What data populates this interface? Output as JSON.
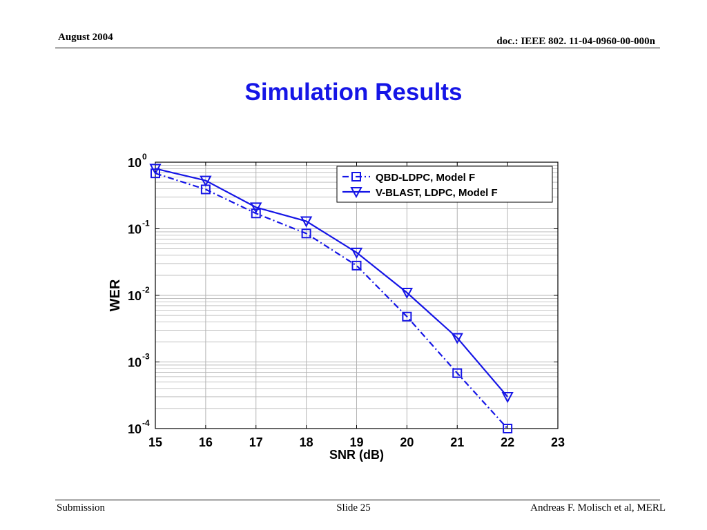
{
  "header": {
    "date": "August 2004",
    "doc_id": "doc.: IEEE 802. 11-04-0960-00-000n"
  },
  "title": "Simulation Results",
  "footer": {
    "left": "Submission",
    "center": "Slide 25",
    "right": "Andreas F. Molisch et al, MERL"
  },
  "colors": {
    "title": "#1515e6",
    "series": "#1515e6",
    "grid": "#b4b4b4"
  },
  "chart_data": {
    "type": "line",
    "xlabel": "SNR (dB)",
    "ylabel": "WER",
    "xlim": [
      15,
      23
    ],
    "ylim": [
      0.0001,
      1
    ],
    "yscale": "log",
    "grid": true,
    "legend_position": "top-right",
    "x_ticks": [
      "15",
      "16",
      "17",
      "18",
      "19",
      "20",
      "21",
      "22",
      "23"
    ],
    "y_ticks": [
      {
        "base": "10",
        "exp": "0"
      },
      {
        "base": "10",
        "exp": "-1"
      },
      {
        "base": "10",
        "exp": "-2"
      },
      {
        "base": "10",
        "exp": "-3"
      },
      {
        "base": "10",
        "exp": "-4"
      }
    ],
    "series": [
      {
        "name": "QBD-LDPC, Model F",
        "line_style": "dash-dot",
        "marker": "square-icon",
        "x": [
          15,
          16,
          17,
          18,
          19,
          20,
          21,
          22
        ],
        "y": [
          0.68,
          0.39,
          0.17,
          0.085,
          0.028,
          0.0048,
          0.00068,
          0.0001
        ]
      },
      {
        "name": "V-BLAST, LDPC, Model F",
        "line_style": "solid",
        "marker": "triangle-down-icon",
        "x": [
          15,
          16,
          17,
          18,
          19,
          20,
          21,
          22
        ],
        "y": [
          0.8,
          0.53,
          0.21,
          0.13,
          0.044,
          0.011,
          0.0023,
          0.0003
        ]
      }
    ]
  }
}
